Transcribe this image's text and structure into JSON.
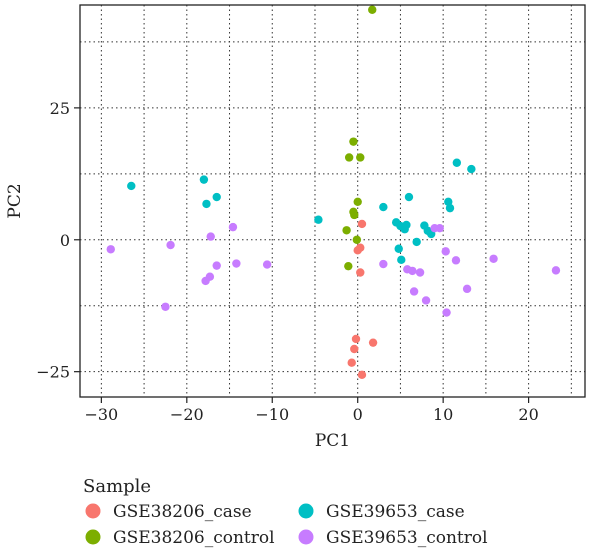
{
  "chart_data": {
    "type": "scatter",
    "xlabel": "PC1",
    "ylabel": "PC2",
    "xlim": [
      -32.5,
      26.6
    ],
    "ylim": [
      -29.8,
      44.5
    ],
    "x_ticks": [
      -30,
      -20,
      -10,
      0,
      10,
      20
    ],
    "y_ticks": [
      -25,
      0,
      25
    ],
    "grid": "dotted, major and minor",
    "legend_title": "Sample",
    "legend_position": "bottom",
    "series": [
      {
        "name": "GSE38206_case",
        "color": "#F8766D",
        "points": [
          [
            0.5,
            3.0
          ],
          [
            0.3,
            -1.5
          ],
          [
            0.0,
            -2.0
          ],
          [
            0.3,
            -6.2
          ],
          [
            -0.2,
            -18.8
          ],
          [
            1.8,
            -19.5
          ],
          [
            -0.4,
            -20.7
          ],
          [
            -0.7,
            -23.3
          ],
          [
            0.5,
            -25.6
          ]
        ]
      },
      {
        "name": "GSE38206_control",
        "color": "#7CAE00",
        "points": [
          [
            1.7,
            43.6
          ],
          [
            -0.5,
            18.6
          ],
          [
            -1.0,
            15.6
          ],
          [
            0.3,
            15.6
          ],
          [
            0.0,
            7.2
          ],
          [
            -0.5,
            5.3
          ],
          [
            -0.4,
            4.7
          ],
          [
            -1.3,
            1.8
          ],
          [
            -0.1,
            0.0
          ],
          [
            -1.1,
            -5.0
          ]
        ]
      },
      {
        "name": "GSE39653_case",
        "color": "#00BFC4",
        "points": [
          [
            -26.5,
            10.2
          ],
          [
            -18.0,
            11.4
          ],
          [
            -16.5,
            8.1
          ],
          [
            -17.7,
            6.8
          ],
          [
            -4.6,
            3.8
          ],
          [
            3.0,
            6.2
          ],
          [
            4.5,
            3.3
          ],
          [
            5.0,
            2.6
          ],
          [
            5.5,
            2.0
          ],
          [
            4.8,
            -1.7
          ],
          [
            5.1,
            -3.8
          ],
          [
            6.0,
            8.1
          ],
          [
            6.9,
            -0.4
          ],
          [
            7.8,
            2.7
          ],
          [
            8.2,
            1.7
          ],
          [
            8.6,
            1.1
          ],
          [
            10.6,
            7.2
          ],
          [
            10.8,
            6.0
          ],
          [
            11.6,
            14.6
          ],
          [
            13.3,
            13.4
          ],
          [
            5.7,
            2.8
          ]
        ]
      },
      {
        "name": "GSE39653_control",
        "color": "#C77CFF",
        "points": [
          [
            -28.9,
            -1.8
          ],
          [
            -21.9,
            -1.0
          ],
          [
            -22.5,
            -12.7
          ],
          [
            -17.2,
            0.6
          ],
          [
            -16.5,
            -4.9
          ],
          [
            -17.3,
            -7.0
          ],
          [
            -17.8,
            -7.8
          ],
          [
            -14.6,
            2.4
          ],
          [
            -14.2,
            -4.5
          ],
          [
            -10.6,
            -4.7
          ],
          [
            3.0,
            -4.6
          ],
          [
            5.8,
            -5.6
          ],
          [
            6.4,
            -5.9
          ],
          [
            7.3,
            -6.2
          ],
          [
            6.6,
            -9.8
          ],
          [
            8.0,
            -11.5
          ],
          [
            9.0,
            2.2
          ],
          [
            9.6,
            2.2
          ],
          [
            10.3,
            -2.2
          ],
          [
            10.4,
            -13.8
          ],
          [
            11.5,
            -3.9
          ],
          [
            12.8,
            -9.3
          ],
          [
            15.9,
            -3.6
          ],
          [
            23.2,
            -5.8
          ]
        ]
      }
    ]
  }
}
